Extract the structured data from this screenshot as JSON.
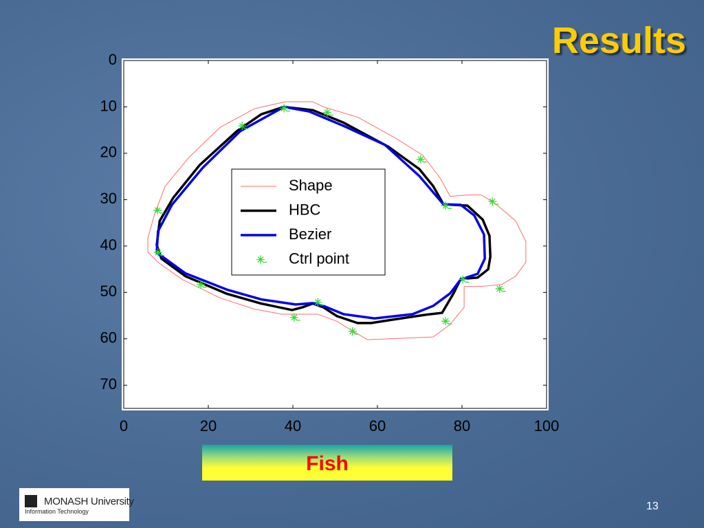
{
  "slide": {
    "title": "Results",
    "caption": "Fish",
    "page_number": "13",
    "logo": {
      "name": "MONASH University",
      "unit": "Information Technology"
    }
  },
  "chart_data": {
    "type": "line",
    "xlim": [
      0,
      100
    ],
    "xticks": [
      0,
      20,
      40,
      60,
      80,
      100
    ],
    "ylim": [
      0,
      75
    ],
    "yticks": [
      0,
      10,
      20,
      30,
      40,
      50,
      60,
      70
    ],
    "y_reversed": true,
    "legend": "center",
    "series": [
      {
        "name": "Shape",
        "color": "#ff6b6b",
        "width": 1,
        "marker": null,
        "x": [
          38.2,
          44.7,
          47.2,
          55.3,
          64.2,
          70.7,
          74.8,
          77.2,
          81.3,
          84.6,
          87.8,
          92.7,
          95.1,
          95.1,
          92.7,
          89.4,
          84.6,
          80.5,
          80.5,
          77.2,
          73.2,
          57.7,
          53.7,
          50.4,
          45.9,
          37.4,
          30.9,
          22.8,
          13.8,
          8.1,
          5.7,
          5.7,
          7.3,
          9.8,
          15.4,
          22.8,
          30.9,
          38.2
        ],
        "values": [
          8.9,
          8.9,
          10.0,
          12.2,
          16.7,
          20.4,
          25.3,
          29.3,
          29.0,
          29.0,
          30.8,
          34.6,
          39.0,
          43.5,
          46.5,
          48.3,
          48.7,
          48.7,
          53.2,
          56.9,
          59.6,
          60.2,
          58.1,
          56.2,
          54.7,
          54.7,
          53.6,
          51.2,
          47.2,
          43.5,
          41.3,
          38.3,
          33.1,
          27.1,
          20.9,
          14.4,
          10.4,
          8.9
        ]
      },
      {
        "name": "HBC",
        "color": "#000000",
        "width": 3.5,
        "marker": null,
        "x": [
          37.9,
          44.7,
          52.0,
          62.6,
          69.9,
          73.2,
          75.6,
          81.3,
          84.9,
          86.5,
          86.7,
          86.2,
          83.7,
          79.7,
          78.0,
          75.3,
          71.5,
          63.4,
          58.5,
          55.3,
          50.4,
          47.2,
          44.7,
          42.3,
          39.8,
          32.5,
          24.4,
          14.6,
          8.9,
          7.8,
          8.5,
          11.7,
          17.9,
          26.8,
          32.5,
          37.9
        ],
        "values": [
          10.0,
          10.7,
          13.4,
          18.6,
          23.4,
          27.1,
          31.0,
          31.3,
          34.3,
          37.8,
          42.3,
          45.0,
          46.8,
          47.1,
          50.2,
          54.4,
          54.8,
          55.9,
          56.6,
          56.6,
          55.1,
          53.2,
          52.4,
          53.2,
          53.8,
          52.4,
          50.3,
          46.5,
          42.7,
          39.8,
          34.6,
          29.6,
          22.6,
          15.2,
          11.6,
          10.0
        ]
      },
      {
        "name": "Bezier",
        "color": "#0000ee",
        "width": 3.5,
        "marker": null,
        "x": [
          37.9,
          43.9,
          52.0,
          61.8,
          69.9,
          75.6,
          79.7,
          82.9,
          85.2,
          85.4,
          83.7,
          79.7,
          77.2,
          73.2,
          68.3,
          59.3,
          52.0,
          47.2,
          44.7,
          40.7,
          32.5,
          24.4,
          14.6,
          7.8,
          8.1,
          11.4,
          18.7,
          27.6,
          37.9
        ],
        "values": [
          10.0,
          11.0,
          14.1,
          18.2,
          24.9,
          31.0,
          31.1,
          33.4,
          37.5,
          42.7,
          46.0,
          47.2,
          50.2,
          52.9,
          54.7,
          55.6,
          54.7,
          52.9,
          52.3,
          52.6,
          51.5,
          49.4,
          45.9,
          41.4,
          36.8,
          31.1,
          23.1,
          15.2,
          10.0
        ]
      },
      {
        "name": "Ctrl point",
        "color": "#33dd33",
        "width": 0,
        "marker": "star",
        "x": [
          37.9,
          48.1,
          28.0,
          70.2,
          8.0,
          76.1,
          87.2,
          8.1,
          18.2,
          80.2,
          88.9,
          40.3,
          45.9,
          54.1,
          76.1
        ],
        "values": [
          10.3,
          11.2,
          14.1,
          21.3,
          32.3,
          31.3,
          30.4,
          41.4,
          48.3,
          47.2,
          49.2,
          55.4,
          52.1,
          58.4,
          56.2
        ]
      }
    ]
  }
}
